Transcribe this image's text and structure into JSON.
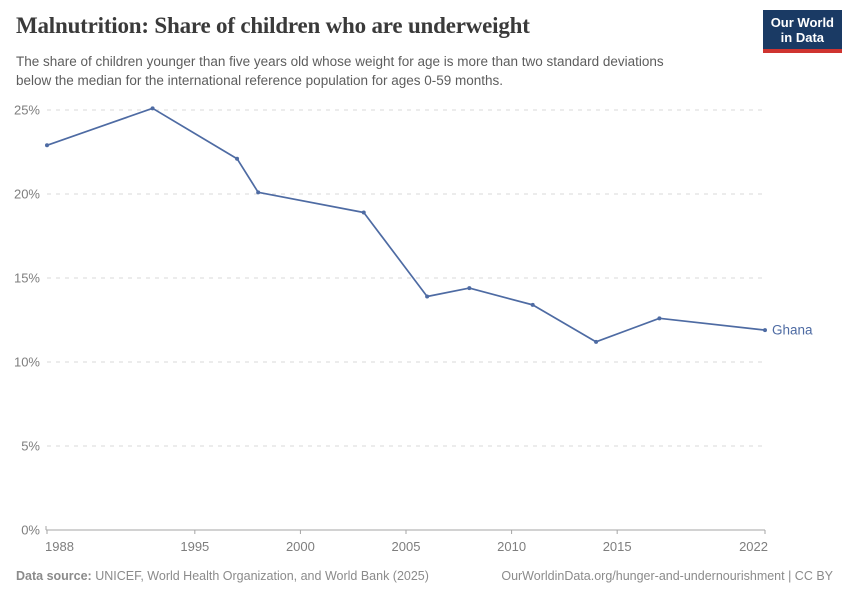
{
  "header": {
    "title": "Malnutrition: Share of children who are underweight",
    "subtitle_line1": "The share of children younger than five years old whose weight for age is more than two standard deviations",
    "subtitle_line2": "below the median for the international reference population for ages 0-59 months.",
    "logo": {
      "line1": "Our World",
      "line2": "in Data"
    }
  },
  "chart_data": {
    "type": "line",
    "title": "Malnutrition: Share of children who are underweight",
    "subtitle": "The share of children younger than five years old whose weight for age is more than two standard deviations below the median for the international reference population for ages 0-59 months.",
    "x": [
      1988,
      1993,
      1997,
      1998,
      2003,
      2006,
      2008,
      2011,
      2014,
      2017,
      2022
    ],
    "series": [
      {
        "name": "Ghana",
        "values": [
          22.9,
          25.1,
          22.1,
          20.1,
          18.9,
          13.9,
          14.4,
          13.4,
          11.2,
          12.6,
          11.9
        ]
      }
    ],
    "x_ticks": [
      1988,
      1995,
      2000,
      2005,
      2010,
      2015,
      2022
    ],
    "y_ticks": [
      0,
      5,
      10,
      15,
      20,
      25
    ],
    "x_range": [
      1988,
      2022
    ],
    "ylim": [
      0,
      25
    ],
    "unit": "%",
    "grid": true,
    "legend_position": "end-of-line",
    "line_color": "#4e6ba3",
    "grid_color": "#dadada",
    "axis_color": "#a5a5a5",
    "tick_label_color": "#7e7e7e"
  },
  "footer": {
    "datasource_label": "Data source:",
    "datasource_text": " UNICEF, World Health Organization, and World Bank (2025)",
    "link_text": "OurWorldinData.org/hunger-and-undernourishment | CC BY"
  },
  "colors": {
    "logo_bg": "#1a3a64",
    "logo_accent": "#cf3430",
    "title_color": "#3a3a3a"
  }
}
